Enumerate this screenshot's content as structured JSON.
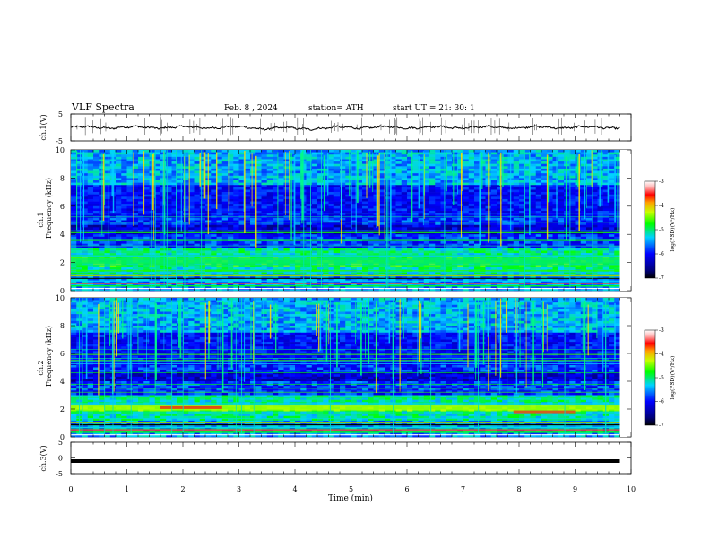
{
  "header": {
    "title": "VLF  Spectra",
    "date": "Feb. 8  , 2024",
    "station": "station= ATH",
    "start_ut": "start  UT  =    21: 30: 1"
  },
  "chart_data": [
    {
      "type": "line",
      "panel": "ch1-waveform",
      "ylabel": "ch.1(V)",
      "ylim": [
        -5,
        5
      ],
      "yticks": [
        "5",
        "-5"
      ],
      "xlim": [
        0,
        10
      ],
      "description": "waveform trace near zero with spikes"
    },
    {
      "type": "heatmap",
      "panel": "ch1-spectrogram",
      "ylabel_top": "ch.1",
      "ylabel": "Frequency  (kHz)",
      "ylim": [
        0,
        10
      ],
      "yticks": [
        "10",
        "8",
        "6",
        "4",
        "2",
        "0"
      ],
      "xlim": [
        0,
        10
      ],
      "data_extent_min": 9.8,
      "colorbar": {
        "label": "log(PSD)(V²/Hz)",
        "range": [
          -7,
          -3
        ],
        "ticks": [
          "-3",
          "-4",
          "-5",
          "-6",
          "-7"
        ]
      }
    },
    {
      "type": "heatmap",
      "panel": "ch2-spectrogram",
      "ylabel_top": "ch.2",
      "ylabel": "Frequency  (kHz)",
      "ylim": [
        0,
        10
      ],
      "yticks": [
        "10",
        "8",
        "6",
        "4",
        "2",
        "0"
      ],
      "xlim": [
        0,
        10
      ],
      "data_extent_min": 9.8,
      "colorbar": {
        "label": "log(PSD)(V²/Hz)",
        "range": [
          -7,
          -3
        ],
        "ticks": [
          "-3",
          "-4",
          "-5",
          "-6",
          "-7"
        ]
      }
    },
    {
      "type": "line",
      "panel": "ch3-waveform",
      "ylabel": "ch.3(V)",
      "ylim": [
        -5,
        5
      ],
      "yticks": [
        "5",
        "0",
        "-5"
      ],
      "xlim": [
        0,
        10
      ],
      "description": "flat thick trace near -1 V"
    }
  ],
  "xaxis": {
    "label": "Time  (min)",
    "ticks": [
      "0",
      "1",
      "2",
      "3",
      "4",
      "5",
      "6",
      "7",
      "8",
      "9",
      "10"
    ]
  }
}
